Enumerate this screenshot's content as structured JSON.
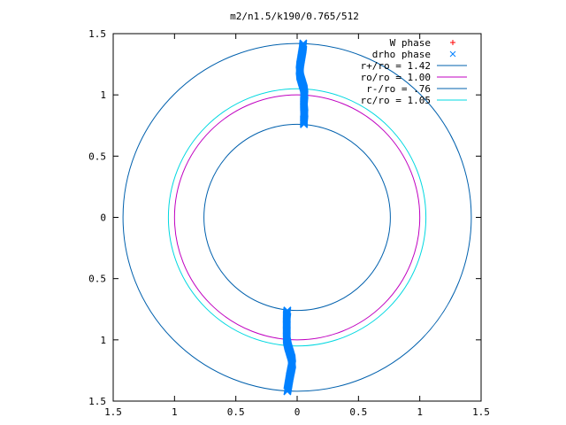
{
  "chart_data": {
    "type": "scatter",
    "title": "m2/n1.5/k190/0.765/512",
    "xlim": [
      -1.5,
      1.5
    ],
    "ylim": [
      -1.5,
      1.5
    ],
    "x_ticks": [
      -1.5,
      -1,
      -0.5,
      0,
      0.5,
      1,
      1.5
    ],
    "x_tick_labels": [
      "1.5",
      "1",
      "0.5",
      "0",
      "0.5",
      "1",
      "1.5"
    ],
    "y_ticks": [
      1.5,
      1,
      0.5,
      0,
      -0.5,
      -1,
      -1.5
    ],
    "y_tick_labels": [
      "1.5",
      "1",
      "0.5",
      "0",
      "0.5",
      "1",
      "1.5"
    ],
    "legend_position": "top-right",
    "grid": false,
    "series": [
      {
        "name": "W phase",
        "kind": "points",
        "marker": "+",
        "color": "#ff0000",
        "points": []
      },
      {
        "name": "drho phase",
        "kind": "points",
        "marker": "x",
        "color": "#0080ff",
        "points": [
          [
            0.05,
            1.42
          ],
          [
            0.045,
            1.37
          ],
          [
            0.035,
            1.31
          ],
          [
            0.025,
            1.25
          ],
          [
            0.02,
            1.2
          ],
          [
            0.025,
            1.15
          ],
          [
            0.04,
            1.1
          ],
          [
            0.055,
            1.05
          ],
          [
            0.06,
            1.0
          ],
          [
            0.055,
            0.95
          ],
          [
            0.055,
            0.9
          ],
          [
            0.06,
            0.85
          ],
          [
            0.055,
            0.8
          ],
          [
            0.055,
            0.76
          ],
          [
            -0.08,
            -0.76
          ],
          [
            -0.085,
            -0.8
          ],
          [
            -0.085,
            -0.85
          ],
          [
            -0.085,
            -0.9
          ],
          [
            -0.085,
            -0.95
          ],
          [
            -0.085,
            -1.0
          ],
          [
            -0.075,
            -1.05
          ],
          [
            -0.06,
            -1.1
          ],
          [
            -0.045,
            -1.15
          ],
          [
            -0.04,
            -1.2
          ],
          [
            -0.05,
            -1.25
          ],
          [
            -0.06,
            -1.3
          ],
          [
            -0.07,
            -1.36
          ],
          [
            -0.08,
            -1.42
          ]
        ]
      },
      {
        "name": "r+/ro = 1.42",
        "kind": "circle",
        "r": 1.42,
        "color": "#0060ad"
      },
      {
        "name": "ro/ro = 1.00",
        "kind": "circle",
        "r": 1.0,
        "color": "#c000c0"
      },
      {
        "name": "r-/ro = .76",
        "kind": "circle",
        "r": 0.76,
        "color": "#0060ad"
      },
      {
        "name": "rc/ro = 1.05",
        "kind": "circle",
        "r": 1.05,
        "color": "#00d8e0"
      }
    ]
  }
}
